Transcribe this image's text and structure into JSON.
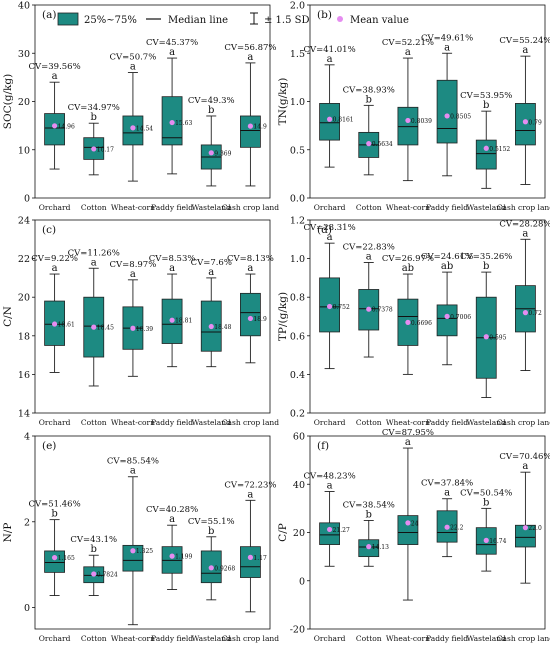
{
  "legend": {
    "box_label": "25%~75%",
    "median_label": "Median line",
    "sd_label": "± 1.5 SD",
    "mean_label": "Mean value"
  },
  "colors": {
    "box_fill": "#1d8a82",
    "box_stroke": "#222222",
    "mean_point": "#e58cf0",
    "whisker": "#222222"
  },
  "chart_data": [
    {
      "type": "box",
      "panel_label": "(a)",
      "ylabel": "SOC(g/kg)",
      "ylim": [
        0,
        40
      ],
      "yticks": [
        0,
        10,
        20,
        30,
        40
      ],
      "categories": [
        "Orchard",
        "Cotton",
        "Wheat-corn",
        "Paddy field",
        "Wasteland",
        "Cash crop land"
      ],
      "boxes": [
        {
          "min": 6,
          "q1": 11,
          "median": 14.5,
          "q3": 17.5,
          "max": 24,
          "mean": 14.96,
          "mean_label": "14.96",
          "cv": "CV=39.56%",
          "letter": "a"
        },
        {
          "min": 4.8,
          "q1": 8,
          "median": 10.5,
          "q3": 12.5,
          "max": 15.5,
          "mean": 10.17,
          "mean_label": "10.17",
          "cv": "CV=34.97%",
          "letter": "b"
        },
        {
          "min": 3.5,
          "q1": 11,
          "median": 13.5,
          "q3": 17,
          "max": 26,
          "mean": 14.54,
          "mean_label": "14.54",
          "cv": "CV=50.7%",
          "letter": "a"
        },
        {
          "min": 5,
          "q1": 11,
          "median": 12.5,
          "q3": 21,
          "max": 29,
          "mean": 15.63,
          "mean_label": "15.63",
          "cv": "CV=45.37%",
          "letter": "a"
        },
        {
          "min": 2.5,
          "q1": 6,
          "median": 8.5,
          "q3": 11,
          "max": 17,
          "mean": 9.369,
          "mean_label": "9.369",
          "cv": "CV=49.3%",
          "letter": "b"
        },
        {
          "min": 2.5,
          "q1": 10.5,
          "median": 14,
          "q3": 17,
          "max": 28,
          "mean": 14.9,
          "mean_label": "14.9",
          "cv": "CV=56.87%",
          "letter": "a"
        }
      ]
    },
    {
      "type": "box",
      "panel_label": "(b)",
      "ylabel": "TN(g/kg)",
      "ylim": [
        0,
        2.0
      ],
      "yticks": [
        0.0,
        0.5,
        1.0,
        1.5,
        2.0
      ],
      "ytick_labels": [
        "0.0",
        "0.5",
        "1.0",
        "1.5",
        "2.0"
      ],
      "categories": [
        "Orchard",
        "Cotton",
        "Wheat-corn",
        "Paddy field",
        "Wasteland",
        "Cash crop land"
      ],
      "boxes": [
        {
          "min": 0.32,
          "q1": 0.6,
          "median": 0.78,
          "q3": 0.98,
          "max": 1.38,
          "mean": 0.8161,
          "mean_label": "0.8161",
          "cv": "CV=41.01%",
          "letter": "a"
        },
        {
          "min": 0.24,
          "q1": 0.42,
          "median": 0.55,
          "q3": 0.68,
          "max": 0.96,
          "mean": 0.5634,
          "mean_label": "0.5634",
          "cv": "CV=38.93%",
          "letter": "b"
        },
        {
          "min": 0.18,
          "q1": 0.55,
          "median": 0.74,
          "q3": 0.94,
          "max": 1.45,
          "mean": 0.8039,
          "mean_label": "0.8039",
          "cv": "CV=52.21%",
          "letter": "a"
        },
        {
          "min": 0.23,
          "q1": 0.57,
          "median": 0.72,
          "q3": 1.22,
          "max": 1.5,
          "mean": 0.8505,
          "mean_label": "0.8505",
          "cv": "CV=49.61%",
          "letter": "a"
        },
        {
          "min": 0.1,
          "q1": 0.3,
          "median": 0.46,
          "q3": 0.6,
          "max": 0.9,
          "mean": 0.5152,
          "mean_label": "0.5152",
          "cv": "CV=53.95%",
          "letter": "b"
        },
        {
          "min": 0.14,
          "q1": 0.55,
          "median": 0.7,
          "q3": 0.98,
          "max": 1.47,
          "mean": 0.79,
          "mean_label": "0.79",
          "cv": "CV=55.24%",
          "letter": "a"
        }
      ]
    },
    {
      "type": "box",
      "panel_label": "(c)",
      "ylabel": "C/N",
      "ylim": [
        14,
        24
      ],
      "yticks": [
        14,
        16,
        18,
        20,
        22,
        24
      ],
      "categories": [
        "Orchard",
        "Cotton",
        "Wheat-corn",
        "Paddy field",
        "Wasteland",
        "Cash crop land"
      ],
      "boxes": [
        {
          "min": 16.1,
          "q1": 17.5,
          "median": 18.6,
          "q3": 19.8,
          "max": 21.2,
          "mean": 18.61,
          "mean_label": "18.61",
          "cv": "CV=9.22%",
          "letter": "a"
        },
        {
          "min": 15.4,
          "q1": 16.9,
          "median": 18.5,
          "q3": 20,
          "max": 21.5,
          "mean": 18.45,
          "mean_label": "18.45",
          "cv": "CV=11.26%",
          "letter": "a"
        },
        {
          "min": 15.9,
          "q1": 17.3,
          "median": 18.4,
          "q3": 19.5,
          "max": 20.9,
          "mean": 18.39,
          "mean_label": "18.39",
          "cv": "CV=8.97%",
          "letter": "a"
        },
        {
          "min": 16.4,
          "q1": 17.6,
          "median": 18.6,
          "q3": 19.9,
          "max": 21.2,
          "mean": 18.81,
          "mean_label": "18.81",
          "cv": "CV=8.53%",
          "letter": "a"
        },
        {
          "min": 16.4,
          "q1": 17.2,
          "median": 18.2,
          "q3": 19.8,
          "max": 21,
          "mean": 18.48,
          "mean_label": "18.48",
          "cv": "CV=7.6%",
          "letter": "a"
        },
        {
          "min": 16.6,
          "q1": 18,
          "median": 19.2,
          "q3": 20.2,
          "max": 21.2,
          "mean": 18.9,
          "mean_label": "18.9",
          "cv": "CV=8.13%",
          "letter": "a"
        }
      ]
    },
    {
      "type": "box",
      "panel_label": "(d)",
      "ylabel": "TP/(g/kg)",
      "ylim": [
        0.2,
        1.2
      ],
      "yticks": [
        0.2,
        0.4,
        0.6,
        0.8,
        1.0,
        1.2
      ],
      "ytick_labels": [
        "0.2",
        "0.4",
        "0.6",
        "0.8",
        "1.0",
        "1.2"
      ],
      "categories": [
        "Orchard",
        "Cotton",
        "Wheat-corn",
        "Paddy field",
        "Wasteland",
        "Cash crop land"
      ],
      "boxes": [
        {
          "min": 0.43,
          "q1": 0.62,
          "median": 0.75,
          "q3": 0.9,
          "max": 1.08,
          "mean": 0.752,
          "mean_label": "0.752",
          "cv": "CV=28.31%",
          "letter": "a"
        },
        {
          "min": 0.49,
          "q1": 0.63,
          "median": 0.74,
          "q3": 0.84,
          "max": 0.98,
          "mean": 0.7378,
          "mean_label": "0.7378",
          "cv": "CV=22.83%",
          "letter": "a"
        },
        {
          "min": 0.4,
          "q1": 0.55,
          "median": 0.7,
          "q3": 0.79,
          "max": 0.92,
          "mean": 0.6696,
          "mean_label": "0.6696",
          "cv": "CV=26.97%",
          "letter": "ab"
        },
        {
          "min": 0.45,
          "q1": 0.6,
          "median": 0.69,
          "q3": 0.76,
          "max": 0.93,
          "mean": 0.7006,
          "mean_label": "0.7006",
          "cv": "CV=24.61%",
          "letter": "ab"
        },
        {
          "min": 0.28,
          "q1": 0.38,
          "median": 0.59,
          "q3": 0.8,
          "max": 0.93,
          "mean": 0.595,
          "mean_label": "0.595",
          "cv": "CV=35.26%",
          "letter": "b"
        },
        {
          "min": 0.42,
          "q1": 0.62,
          "median": 0.74,
          "q3": 0.86,
          "max": 1.1,
          "mean": 0.72,
          "mean_label": "0.72",
          "cv": "CV=28.28%",
          "letter": "a"
        }
      ]
    },
    {
      "type": "box",
      "panel_label": "(e)",
      "ylabel": "N/P",
      "ylim": [
        -0.5,
        4
      ],
      "yticks": [
        0,
        2,
        4
      ],
      "categories": [
        "Orchard",
        "Cotton",
        "Wheat-corn",
        "Paddy field",
        "Wasteland",
        "Cash crop land"
      ],
      "boxes": [
        {
          "min": 0.28,
          "q1": 0.82,
          "median": 1.05,
          "q3": 1.32,
          "max": 2.05,
          "mean": 1.165,
          "mean_label": "1.165",
          "cv": "CV=51.46%",
          "letter": "b"
        },
        {
          "min": 0.28,
          "q1": 0.58,
          "median": 0.75,
          "q3": 0.95,
          "max": 1.22,
          "mean": 0.7824,
          "mean_label": "0.7824",
          "cv": "CV=43.1%",
          "letter": "b"
        },
        {
          "min": -0.4,
          "q1": 0.85,
          "median": 1.1,
          "q3": 1.45,
          "max": 3.05,
          "mean": 1.325,
          "mean_label": "1.325",
          "cv": "CV=85.54%",
          "letter": "a"
        },
        {
          "min": 0.42,
          "q1": 0.8,
          "median": 1.1,
          "q3": 1.42,
          "max": 1.92,
          "mean": 1.199,
          "mean_label": "1.199",
          "cv": "CV=40.28%",
          "letter": "a"
        },
        {
          "min": 0.18,
          "q1": 0.58,
          "median": 0.8,
          "q3": 1.32,
          "max": 1.65,
          "mean": 0.9268,
          "mean_label": "0.9268",
          "cv": "CV=55.1%",
          "letter": "b"
        },
        {
          "min": -0.1,
          "q1": 0.7,
          "median": 0.95,
          "q3": 1.42,
          "max": 2.5,
          "mean": 1.17,
          "mean_label": "1.17",
          "cv": "CV=72.23%",
          "letter": "a"
        }
      ]
    },
    {
      "type": "box",
      "panel_label": "(f)",
      "ylabel": "C/P",
      "ylim": [
        -20,
        60
      ],
      "yticks": [
        -20,
        0,
        20,
        40,
        60
      ],
      "categories": [
        "Orchard",
        "Cotton",
        "Wheat-corn",
        "Paddy field",
        "Wasteland",
        "Cash crop land"
      ],
      "boxes": [
        {
          "min": 6,
          "q1": 15,
          "median": 19,
          "q3": 24,
          "max": 37,
          "mean": 21.27,
          "mean_label": "21.27",
          "cv": "CV=48.23%",
          "letter": "a"
        },
        {
          "min": 6,
          "q1": 10,
          "median": 14,
          "q3": 17,
          "max": 25,
          "mean": 14.13,
          "mean_label": "14.13",
          "cv": "CV=38.54%",
          "letter": "b"
        },
        {
          "min": -8,
          "q1": 15,
          "median": 20,
          "q3": 27,
          "max": 55,
          "mean": 24,
          "mean_label": "24",
          "cv": "CV=87.95%",
          "letter": "a"
        },
        {
          "min": 10,
          "q1": 16,
          "median": 20,
          "q3": 29,
          "max": 34,
          "mean": 22.2,
          "mean_label": "22.2",
          "cv": "CV=37.84%",
          "letter": "a"
        },
        {
          "min": 4,
          "q1": 11,
          "median": 15,
          "q3": 22,
          "max": 30,
          "mean": 16.74,
          "mean_label": "16.74",
          "cv": "CV=50.54%",
          "letter": "b"
        },
        {
          "min": -1,
          "q1": 14,
          "median": 18,
          "q3": 23,
          "max": 45,
          "mean": 22,
          "mean_label": "22.0",
          "cv": "CV=70.46%",
          "letter": "a"
        }
      ]
    }
  ]
}
